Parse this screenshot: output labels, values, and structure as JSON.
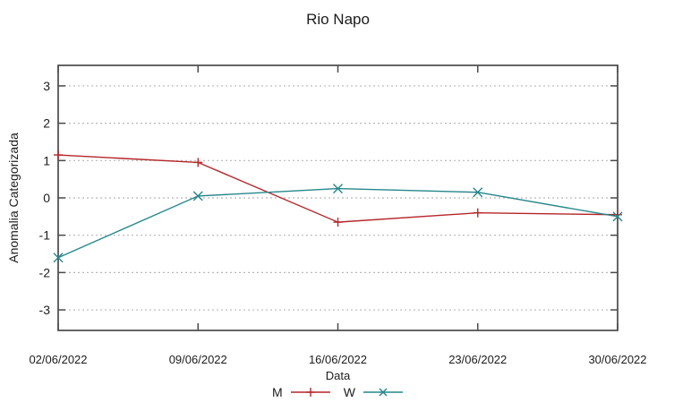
{
  "window": {
    "background": "#ffffff"
  },
  "chart_data": {
    "type": "line",
    "title": "Rio Napo",
    "xlabel": "Data",
    "ylabel": "Anomalia Categorizada",
    "categories": [
      "02/06/2022",
      "09/06/2022",
      "16/06/2022",
      "23/06/2022",
      "30/06/2022"
    ],
    "series": [
      {
        "name": "M",
        "color": "#b4262a",
        "marker": "plus",
        "values": [
          1.15,
          0.95,
          -0.65,
          -0.4,
          -0.45
        ]
      },
      {
        "name": "W",
        "color": "#26878a",
        "marker": "x",
        "values": [
          -1.6,
          0.05,
          0.25,
          0.15,
          -0.5
        ]
      }
    ],
    "yticks": [
      -3,
      -2,
      -1,
      0,
      1,
      2,
      3
    ],
    "ylim": [
      -3.55,
      3.55
    ],
    "grid": "horizontal-dotted",
    "legend_position": "bottom-center",
    "colors": {
      "border": "#4a4a4a",
      "gridline": "#b8b8b8",
      "text": "#1c1c1c"
    }
  }
}
